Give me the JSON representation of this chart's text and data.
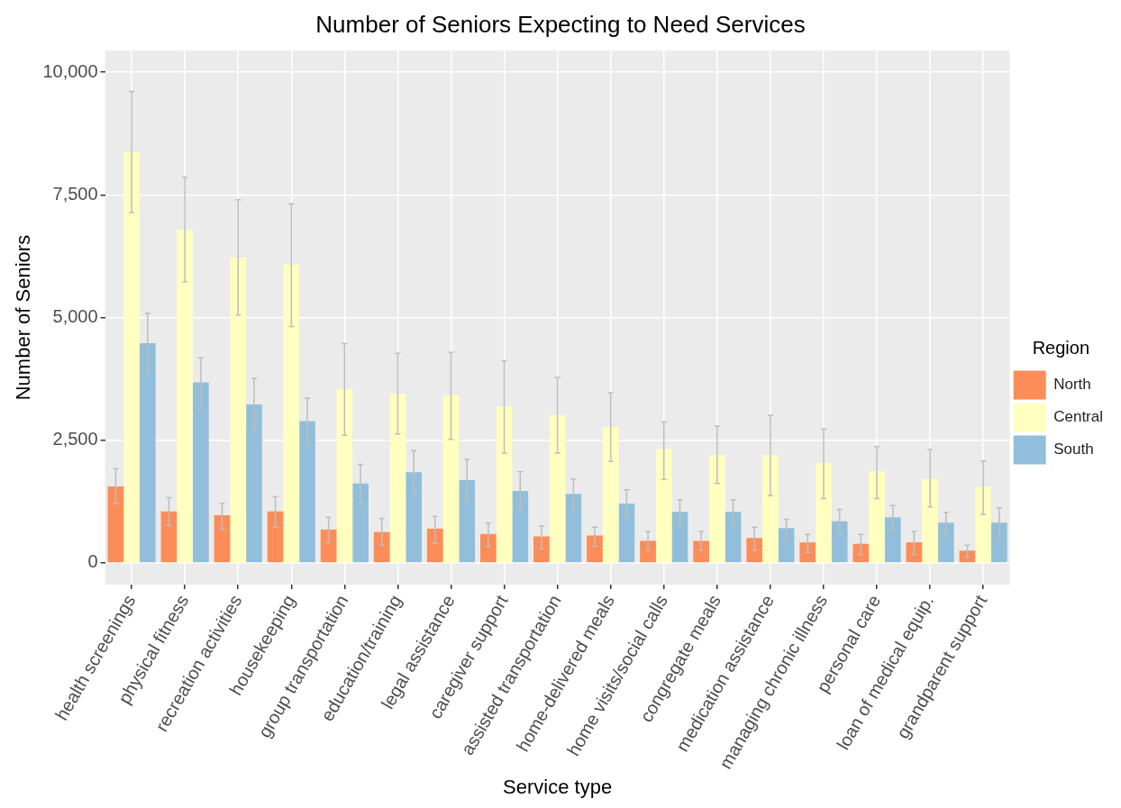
{
  "chart_data": {
    "type": "bar",
    "title": "Number of Seniors Expecting to Need Services",
    "xlabel": "Service type",
    "ylabel": "Number of Seniors",
    "legend_title": "Region",
    "legend": "right",
    "grid": true,
    "categories": [
      "health screenings",
      "physical fitness",
      "recreation activities",
      "housekeeping",
      "group transportation",
      "education/training",
      "legal assistance",
      "caregiver support",
      "assisted transportation",
      "home-delivered meals",
      "home visits/social calls",
      "congregate meals",
      "medication assistance",
      "managing chronic illness",
      "personal care",
      "loan of medical equip.",
      "grandparent support"
    ],
    "ylim": [
      -440,
      10440
    ],
    "yticks": [
      {
        "value": 0,
        "label": "0"
      },
      {
        "value": 2500,
        "label": "2,500"
      },
      {
        "value": 5000,
        "label": "5,000"
      },
      {
        "value": 7500,
        "label": "7,500"
      },
      {
        "value": 10000,
        "label": "10,000"
      }
    ],
    "series": [
      {
        "name": "North",
        "color": "#fc8d59",
        "values": [
          1560,
          1050,
          970,
          1050,
          680,
          630,
          700,
          590,
          540,
          560,
          450,
          450,
          510,
          420,
          390,
          420,
          250
        ],
        "errors": [
          [
            1210,
            1920
          ],
          [
            760,
            1330
          ],
          [
            680,
            1210
          ],
          [
            730,
            1350
          ],
          [
            410,
            930
          ],
          [
            360,
            910
          ],
          [
            400,
            950
          ],
          [
            340,
            810
          ],
          [
            290,
            750
          ],
          [
            340,
            730
          ],
          [
            260,
            640
          ],
          [
            260,
            640
          ],
          [
            260,
            730
          ],
          [
            210,
            580
          ],
          [
            170,
            580
          ],
          [
            170,
            640
          ],
          [
            120,
            360
          ]
        ]
      },
      {
        "name": "Central",
        "color": "#ffffbf",
        "values": [
          8370,
          6790,
          6220,
          6080,
          3540,
          3450,
          3420,
          3190,
          3020,
          2770,
          2320,
          2200,
          2200,
          2030,
          1870,
          1720,
          1550
        ],
        "errors": [
          [
            7140,
            9610
          ],
          [
            5730,
            7860
          ],
          [
            5050,
            7400
          ],
          [
            4820,
            7320
          ],
          [
            2600,
            4470
          ],
          [
            2630,
            4270
          ],
          [
            2520,
            4290
          ],
          [
            2240,
            4120
          ],
          [
            2240,
            3780
          ],
          [
            2070,
            3470
          ],
          [
            1700,
            2870
          ],
          [
            1620,
            2790
          ],
          [
            1370,
            3010
          ],
          [
            1310,
            2730
          ],
          [
            1310,
            2370
          ],
          [
            1140,
            2310
          ],
          [
            990,
            2080
          ]
        ]
      },
      {
        "name": "South",
        "color": "#91bfdb",
        "values": [
          4480,
          3680,
          3230,
          2890,
          1620,
          1850,
          1690,
          1470,
          1410,
          1210,
          1040,
          1040,
          710,
          850,
          930,
          820,
          820
        ],
        "errors": [
          [
            3830,
            5090
          ],
          [
            3130,
            4180
          ],
          [
            2710,
            3760
          ],
          [
            2400,
            3360
          ],
          [
            1210,
            2010
          ],
          [
            1410,
            2290
          ],
          [
            1250,
            2110
          ],
          [
            1060,
            1860
          ],
          [
            1060,
            1710
          ],
          [
            910,
            1490
          ],
          [
            770,
            1290
          ],
          [
            740,
            1290
          ],
          [
            480,
            890
          ],
          [
            580,
            1090
          ],
          [
            660,
            1170
          ],
          [
            560,
            1030
          ],
          [
            520,
            1120
          ]
        ]
      }
    ]
  }
}
